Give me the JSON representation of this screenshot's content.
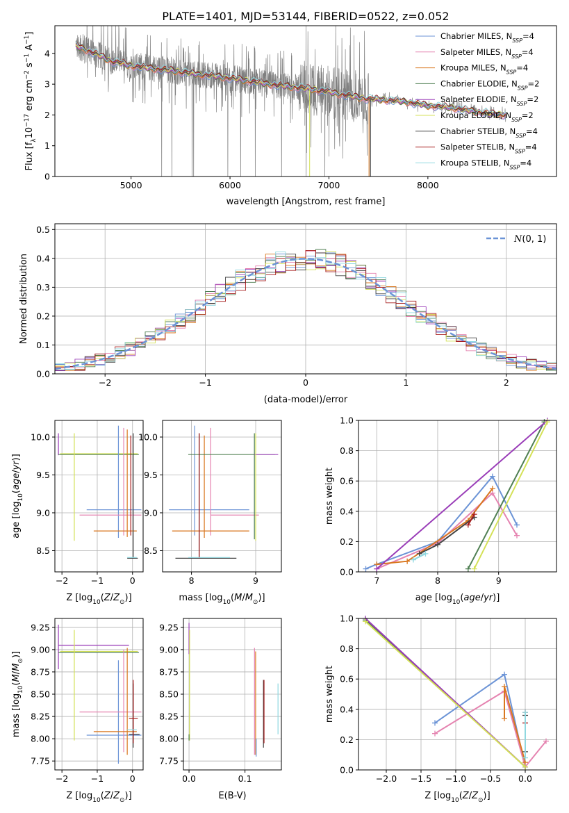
{
  "figure": {
    "title": "PLATE=1401, MJD=53144, FIBERID=0522, z=0.052"
  },
  "series_legend": [
    {
      "label": "Chabrier MILES, N_SSP=4",
      "pre": "Chabrier MILES, N",
      "sub": "SSP",
      "post": "=4",
      "color": "#6b93d6"
    },
    {
      "label": "Salpeter MILES, N_SSP=4",
      "pre": "Salpeter MILES, N",
      "sub": "SSP",
      "post": "=4",
      "color": "#e583b0"
    },
    {
      "label": "Kroupa MILES, N_SSP=4",
      "pre": "Kroupa MILES, N",
      "sub": "SSP",
      "post": "=4",
      "color": "#d9771f"
    },
    {
      "label": "Chabrier ELODIE, N_SSP=2",
      "pre": "Chabrier ELODIE, N",
      "sub": "SSP",
      "post": "=2",
      "color": "#4f7f52"
    },
    {
      "label": "Salpeter ELODIE, N_SSP=2",
      "pre": "Salpeter ELODIE, N",
      "sub": "SSP",
      "post": "=2",
      "color": "#9a3db8"
    },
    {
      "label": "Kroupa ELODIE, N_SSP=2",
      "pre": "Kroupa ELODIE, N",
      "sub": "SSP",
      "post": "=2",
      "color": "#d4e157"
    },
    {
      "label": "Chabrier STELIB, N_SSP=4",
      "pre": "Chabrier STELIB, N",
      "sub": "SSP",
      "post": "=4",
      "color": "#444444"
    },
    {
      "label": "Salpeter STELIB, N_SSP=4",
      "pre": "Salpeter STELIB, N",
      "sub": "SSP",
      "post": "=4",
      "color": "#a61c1c"
    },
    {
      "label": "Kroupa STELIB, N_SSP=4",
      "pre": "Kroupa STELIB, N",
      "sub": "SSP",
      "post": "=4",
      "color": "#8fd8e0"
    }
  ],
  "chart_data": [
    {
      "id": "spectrum",
      "type": "line",
      "xlabel": "wavelength [Angstrom, rest frame]",
      "ylabel": "Flux [f_λ 10^-17 erg cm^-2 s^-1 A^-1]",
      "xlim": [
        4230,
        9300
      ],
      "ylim": [
        0,
        4.9
      ],
      "xticks": [
        5000,
        6000,
        7000,
        8000
      ],
      "yticks": [
        0,
        1,
        2,
        3,
        4
      ],
      "grid": false,
      "legend_position": "top-right",
      "data_color": "#808080",
      "model_continuum": {
        "x": [
          4440,
          4600,
          4800,
          5000,
          5200,
          5400,
          5600,
          5800,
          6000,
          6200,
          6400,
          6600,
          6800,
          7000,
          7200,
          7400,
          7600,
          7800,
          8000,
          8200,
          8400,
          8600,
          8790
        ],
        "y": [
          4.25,
          4.05,
          3.75,
          3.6,
          3.52,
          3.45,
          3.35,
          3.28,
          3.2,
          3.1,
          3.0,
          2.92,
          2.85,
          2.75,
          2.62,
          2.52,
          2.48,
          2.42,
          2.3,
          2.25,
          2.15,
          2.05,
          2.0
        ]
      }
    },
    {
      "id": "residuals",
      "type": "bar",
      "xlabel": "(data-model)/error",
      "ylabel": "Normed distribution",
      "xlim": [
        -2.5,
        2.5
      ],
      "ylim": [
        0,
        0.52
      ],
      "xticks": [
        -2,
        -1,
        0,
        1,
        2
      ],
      "yticks": [
        0.0,
        0.1,
        0.2,
        0.3,
        0.4,
        0.5
      ],
      "grid": true,
      "legend": "N(0,1)",
      "legend_position": "top-right",
      "bin_width": 0.1,
      "bin_start": -2.5,
      "gaussian": {
        "mean": 0,
        "sigma": 1,
        "color": "#6b93d6"
      }
    },
    {
      "id": "age_vs_Z",
      "type": "scatter",
      "xlabel": "Z [log10(Z/Z⊙)]",
      "ylabel": "age [log10(age/yr)]",
      "xlim": [
        -2.2,
        0.3
      ],
      "ylim": [
        8.22,
        10.22
      ],
      "xticks": [
        -2,
        -1,
        0
      ],
      "yticks": [
        8.5,
        9.0,
        9.5,
        10.0
      ],
      "grid": true,
      "segments": [
        {
          "color": "#9a3db8",
          "x1": -2.1,
          "y1": 9.76,
          "x2": -2.1,
          "y2": 10.05
        },
        {
          "color": "#4f7f52",
          "x1": -2.1,
          "y1": 9.77,
          "x2": 0.18,
          "y2": 9.77
        },
        {
          "color": "#d4e157",
          "x1": -1.65,
          "y1": 8.63,
          "x2": -1.65,
          "y2": 10.05
        },
        {
          "color": "#d4e157",
          "x1": -2.05,
          "y1": 9.78,
          "x2": 0.15,
          "y2": 9.78
        },
        {
          "color": "#6b93d6",
          "x1": -0.4,
          "y1": 8.67,
          "x2": -0.4,
          "y2": 10.15
        },
        {
          "color": "#6b93d6",
          "x1": -1.3,
          "y1": 9.04,
          "x2": 0.25,
          "y2": 9.04
        },
        {
          "color": "#e583b0",
          "x1": -0.25,
          "y1": 8.7,
          "x2": -0.25,
          "y2": 10.12
        },
        {
          "color": "#e583b0",
          "x1": -1.5,
          "y1": 8.97,
          "x2": 0.25,
          "y2": 8.97
        },
        {
          "color": "#d9771f",
          "x1": -0.15,
          "y1": 8.68,
          "x2": -0.15,
          "y2": 10.1
        },
        {
          "color": "#d9771f",
          "x1": -1.1,
          "y1": 8.76,
          "x2": 0.12,
          "y2": 8.76
        },
        {
          "color": "#444444",
          "x1": 0.02,
          "y1": 8.4,
          "x2": 0.02,
          "y2": 10.05
        },
        {
          "color": "#444444",
          "x1": -0.15,
          "y1": 8.4,
          "x2": 0.15,
          "y2": 8.4
        },
        {
          "color": "#a61c1c",
          "x1": -0.05,
          "y1": 8.7,
          "x2": -0.05,
          "y2": 10.02
        },
        {
          "color": "#8fd8e0",
          "x1": -0.15,
          "y1": 8.41,
          "x2": 0.12,
          "y2": 8.41
        }
      ]
    },
    {
      "id": "age_vs_mass",
      "type": "scatter",
      "xlabel": "mass [log10(M/M⊙)]",
      "ylabel": "",
      "xlim": [
        7.55,
        9.4
      ],
      "ylim": [
        8.22,
        10.22
      ],
      "xticks": [
        8,
        9
      ],
      "yticks": [
        8.5,
        9.0,
        9.5,
        10.0
      ],
      "grid": true,
      "segments": [
        {
          "color": "#6b93d6",
          "x1": 8.05,
          "y1": 8.7,
          "x2": 8.05,
          "y2": 10.15
        },
        {
          "color": "#6b93d6",
          "x1": 7.65,
          "y1": 9.04,
          "x2": 8.9,
          "y2": 9.04
        },
        {
          "color": "#e583b0",
          "x1": 8.3,
          "y1": 8.7,
          "x2": 8.3,
          "y2": 10.12
        },
        {
          "color": "#e583b0",
          "x1": 8.3,
          "y1": 8.97,
          "x2": 9.05,
          "y2": 8.97
        },
        {
          "color": "#d9771f",
          "x1": 8.2,
          "y1": 8.67,
          "x2": 8.2,
          "y2": 10.02
        },
        {
          "color": "#d9771f",
          "x1": 7.7,
          "y1": 8.76,
          "x2": 8.9,
          "y2": 8.76
        },
        {
          "color": "#4f7f52",
          "x1": 8.98,
          "y1": 8.65,
          "x2": 8.98,
          "y2": 10.05
        },
        {
          "color": "#4f7f52",
          "x1": 7.95,
          "y1": 9.77,
          "x2": 9.3,
          "y2": 9.77
        },
        {
          "color": "#9a3db8",
          "x1": 8.98,
          "y1": 9.77,
          "x2": 9.35,
          "y2": 9.77
        },
        {
          "color": "#d4e157",
          "x1": 9.0,
          "y1": 8.63,
          "x2": 9.0,
          "y2": 10.05
        },
        {
          "color": "#444444",
          "x1": 8.12,
          "y1": 8.4,
          "x2": 8.12,
          "y2": 10.05
        },
        {
          "color": "#444444",
          "x1": 7.75,
          "y1": 8.4,
          "x2": 8.7,
          "y2": 8.4
        },
        {
          "color": "#a61c1c",
          "x1": 8.12,
          "y1": 8.4,
          "x2": 8.12,
          "y2": 10.05
        },
        {
          "color": "#8fd8e0",
          "x1": 7.95,
          "y1": 8.41,
          "x2": 8.6,
          "y2": 8.41
        }
      ]
    },
    {
      "id": "mass_weight_vs_age",
      "type": "line",
      "xlabel": "age [log10(age/yr)]",
      "ylabel": "mass weight",
      "xlim": [
        6.7,
        9.95
      ],
      "ylim": [
        0,
        1
      ],
      "xticks": [
        7,
        8,
        9
      ],
      "yticks": [
        0.0,
        0.2,
        0.4,
        0.6,
        0.8,
        1.0
      ],
      "grid": true,
      "series": [
        {
          "color": "#6b93d6",
          "x": [
            6.82,
            7.0,
            8.0,
            8.9,
            9.3
          ],
          "y": [
            0.02,
            0.05,
            0.2,
            0.63,
            0.31
          ]
        },
        {
          "color": "#e583b0",
          "x": [
            7.0,
            8.0,
            8.9,
            9.3
          ],
          "y": [
            0.02,
            0.19,
            0.52,
            0.24
          ]
        },
        {
          "color": "#d9771f",
          "x": [
            7.0,
            7.5,
            8.5,
            8.9
          ],
          "y": [
            0.05,
            0.07,
            0.34,
            0.55
          ]
        },
        {
          "color": "#4f7f52",
          "x": [
            8.5,
            9.75
          ],
          "y": [
            0.02,
            0.99
          ]
        },
        {
          "color": "#9a3db8",
          "x": [
            7.0,
            9.8
          ],
          "y": [
            0.02,
            1.0
          ]
        },
        {
          "color": "#d4e157",
          "x": [
            8.6,
            9.8
          ],
          "y": [
            0.02,
            0.99
          ]
        },
        {
          "color": "#444444",
          "x": [
            7.7,
            8.0,
            8.6
          ],
          "y": [
            0.12,
            0.18,
            0.36
          ]
        },
        {
          "color": "#a61c1c",
          "x": [
            8.5,
            8.6
          ],
          "y": [
            0.31,
            0.38
          ]
        },
        {
          "color": "#8fd8e0",
          "x": [
            7.6,
            7.8
          ],
          "y": [
            0.08,
            0.12
          ]
        }
      ]
    },
    {
      "id": "mass_vs_Z",
      "type": "scatter",
      "xlabel": "Z [log10(Z/Z⊙)]",
      "ylabel": "mass [log10(M/M⊙)]",
      "xlim": [
        -2.2,
        0.3
      ],
      "ylim": [
        7.65,
        9.35
      ],
      "xticks": [
        -2,
        -1,
        0
      ],
      "yticks": [
        7.75,
        8.0,
        8.25,
        8.5,
        8.75,
        9.0,
        9.25
      ],
      "grid": true,
      "segments": [
        {
          "color": "#9a3db8",
          "x1": -2.1,
          "y1": 8.78,
          "x2": -2.1,
          "y2": 9.28
        },
        {
          "color": "#9a3db8",
          "x1": -2.1,
          "y1": 9.05,
          "x2": -0.1,
          "y2": 9.05
        },
        {
          "color": "#4f7f52",
          "x1": -2.1,
          "y1": 8.97,
          "x2": 0.18,
          "y2": 8.97
        },
        {
          "color": "#d4e157",
          "x1": -1.65,
          "y1": 7.98,
          "x2": -1.65,
          "y2": 9.22
        },
        {
          "color": "#d4e157",
          "x1": -2.05,
          "y1": 8.98,
          "x2": 0.15,
          "y2": 8.98
        },
        {
          "color": "#6b93d6",
          "x1": -0.4,
          "y1": 7.72,
          "x2": -0.4,
          "y2": 8.88
        },
        {
          "color": "#6b93d6",
          "x1": -1.3,
          "y1": 8.04,
          "x2": 0.25,
          "y2": 8.04
        },
        {
          "color": "#e583b0",
          "x1": -0.25,
          "y1": 7.85,
          "x2": -0.25,
          "y2": 9.0
        },
        {
          "color": "#e583b0",
          "x1": -1.5,
          "y1": 8.3,
          "x2": 0.25,
          "y2": 8.3
        },
        {
          "color": "#d9771f",
          "x1": -0.15,
          "y1": 7.82,
          "x2": -0.15,
          "y2": 9.02
        },
        {
          "color": "#d9771f",
          "x1": -1.1,
          "y1": 8.08,
          "x2": 0.12,
          "y2": 8.08
        },
        {
          "color": "#444444",
          "x1": 0.02,
          "y1": 7.9,
          "x2": 0.02,
          "y2": 8.62
        },
        {
          "color": "#444444",
          "x1": -0.1,
          "y1": 8.05,
          "x2": 0.2,
          "y2": 8.05
        },
        {
          "color": "#a61c1c",
          "x1": 0.02,
          "y1": 7.95,
          "x2": 0.02,
          "y2": 8.66
        },
        {
          "color": "#a61c1c",
          "x1": -0.1,
          "y1": 8.23,
          "x2": 0.15,
          "y2": 8.23
        },
        {
          "color": "#8fd8e0",
          "x1": -0.15,
          "y1": 8.1,
          "x2": 0.12,
          "y2": 8.1
        }
      ]
    },
    {
      "id": "mass_vs_ebv",
      "type": "scatter",
      "xlabel": "E(B-V)",
      "ylabel": "",
      "xlim": [
        -0.01,
        0.165
      ],
      "ylim": [
        7.65,
        9.35
      ],
      "xticks": [
        0.0,
        0.1
      ],
      "yticks": [
        7.75,
        8.0,
        8.25,
        8.5,
        8.75,
        9.0,
        9.25
      ],
      "grid": true,
      "segments": [
        {
          "color": "#9a3db8",
          "x1": 0.0,
          "y1": 8.95,
          "x2": 0.0,
          "y2": 9.3
        },
        {
          "color": "#d4e157",
          "x1": 0.001,
          "y1": 7.98,
          "x2": 0.001,
          "y2": 9.22
        },
        {
          "color": "#4f7f52",
          "x1": 0.0,
          "y1": 7.98,
          "x2": 0.0,
          "y2": 8.05
        },
        {
          "color": "#e583b0",
          "x1": 0.117,
          "y1": 7.82,
          "x2": 0.117,
          "y2": 9.02
        },
        {
          "color": "#d9771f",
          "x1": 0.119,
          "y1": 7.82,
          "x2": 0.119,
          "y2": 8.98
        },
        {
          "color": "#6b93d6",
          "x1": 0.12,
          "y1": 7.8,
          "x2": 0.12,
          "y2": 8.0
        },
        {
          "color": "#444444",
          "x1": 0.133,
          "y1": 7.9,
          "x2": 0.133,
          "y2": 8.66
        },
        {
          "color": "#a61c1c",
          "x1": 0.134,
          "y1": 7.95,
          "x2": 0.134,
          "y2": 8.66
        },
        {
          "color": "#8fd8e0",
          "x1": 0.159,
          "y1": 8.05,
          "x2": 0.159,
          "y2": 8.62
        }
      ]
    },
    {
      "id": "mass_weight_vs_Z",
      "type": "line",
      "xlabel": "Z [log10(Z/Z⊙)]",
      "ylabel": "mass weight",
      "xlim": [
        -2.4,
        0.45
      ],
      "ylim": [
        0,
        1
      ],
      "xticks": [
        -2.0,
        -1.5,
        -1.0,
        -0.5,
        0.0
      ],
      "yticks": [
        0.0,
        0.2,
        0.4,
        0.6,
        0.8,
        1.0
      ],
      "grid": true,
      "series": [
        {
          "color": "#6b93d6",
          "x": [
            -1.3,
            -0.3,
            0.0
          ],
          "y": [
            0.31,
            0.63,
            0.02
          ]
        },
        {
          "color": "#e583b0",
          "x": [
            -1.3,
            -0.3,
            0.0,
            0.3
          ],
          "y": [
            0.24,
            0.52,
            0.02,
            0.19
          ]
        },
        {
          "color": "#d9771f",
          "x": [
            -0.3,
            -0.3,
            0.0
          ],
          "y": [
            0.34,
            0.55,
            0.05
          ]
        },
        {
          "color": "#4f7f52",
          "x": [
            -2.3,
            0.0
          ],
          "y": [
            0.99,
            0.02
          ]
        },
        {
          "color": "#9a3db8",
          "x": [
            -2.3,
            0.0
          ],
          "y": [
            1.0,
            0.02
          ]
        },
        {
          "color": "#d4e157",
          "x": [
            -2.3,
            0.0
          ],
          "y": [
            0.98,
            0.02
          ]
        },
        {
          "color": "#444444",
          "x": [
            0.0,
            0.0
          ],
          "y": [
            0.12,
            0.36
          ]
        },
        {
          "color": "#a61c1c",
          "x": [
            0.0,
            0.0
          ],
          "y": [
            0.31,
            0.38
          ]
        },
        {
          "color": "#8fd8e0",
          "x": [
            0.0,
            0.0
          ],
          "y": [
            0.08,
            0.38
          ]
        }
      ]
    }
  ]
}
